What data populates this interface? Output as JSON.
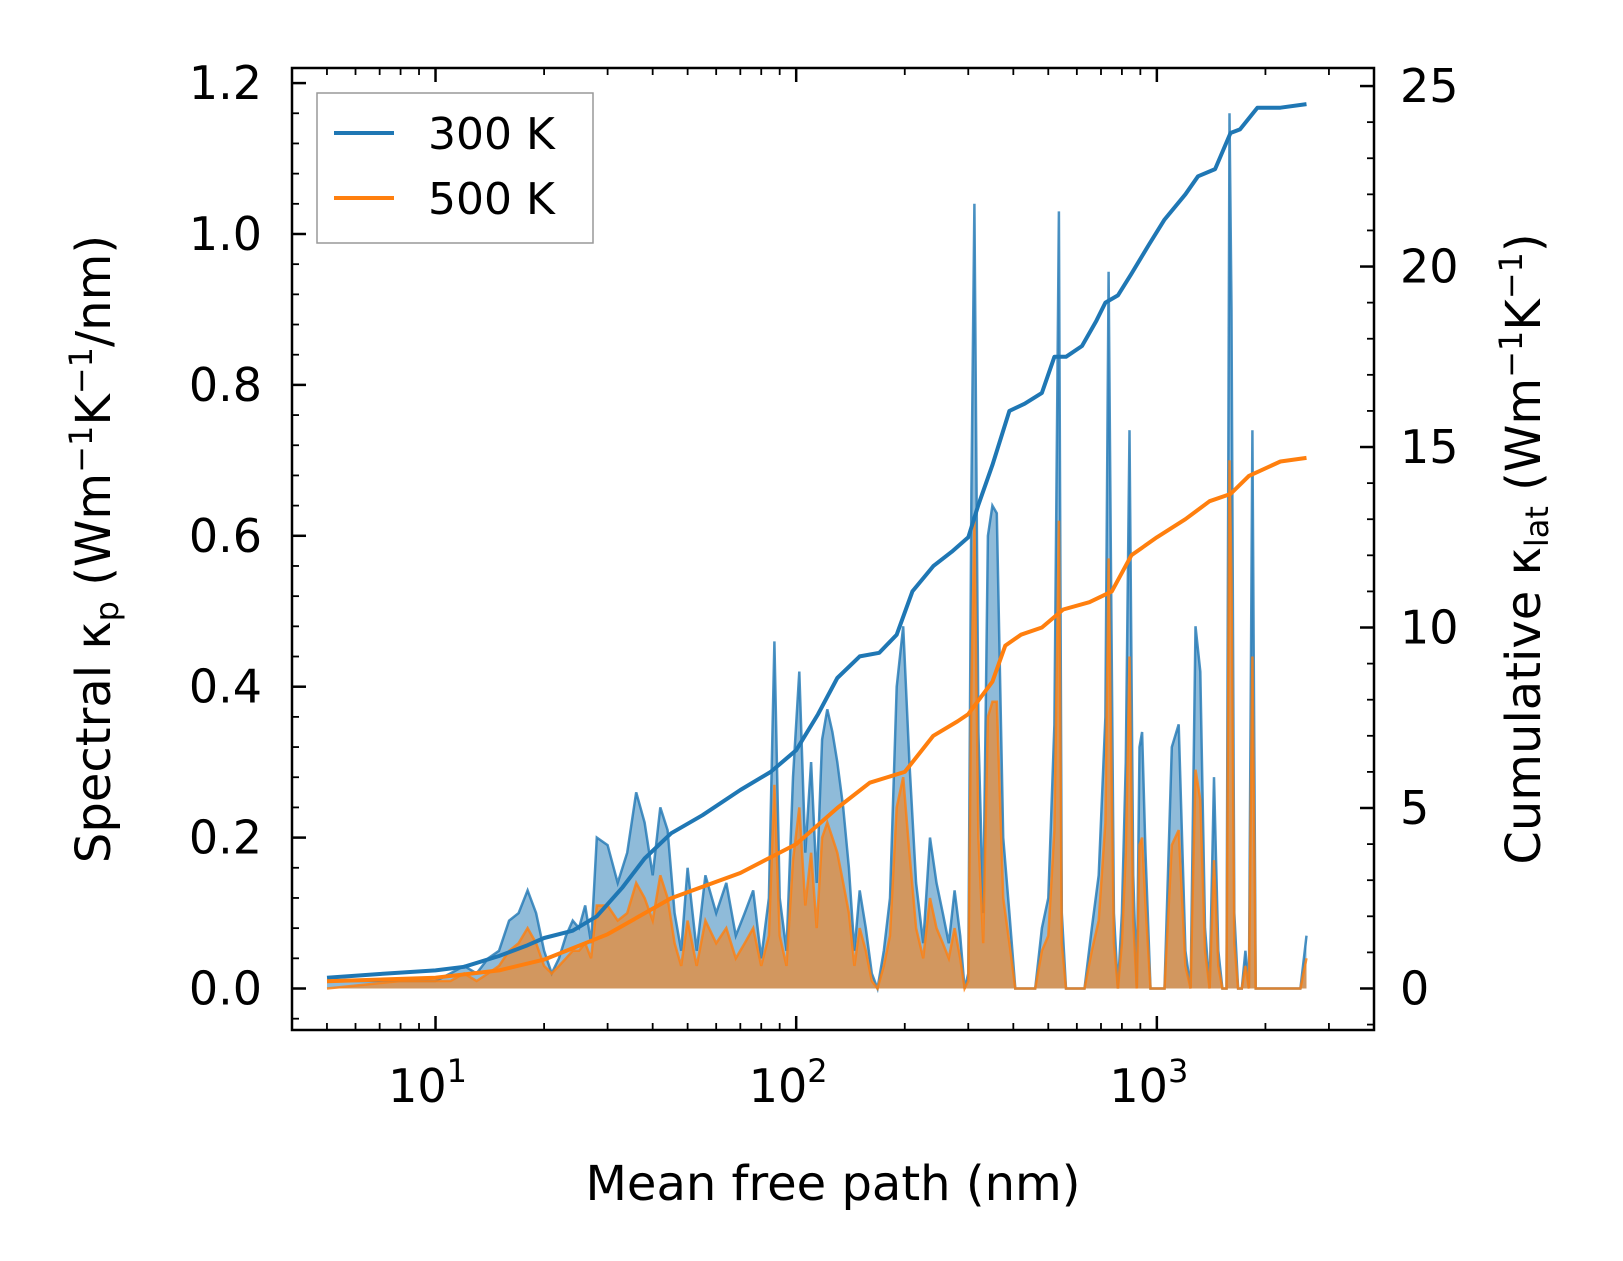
{
  "chart_data": {
    "type": "line",
    "xlabel": "Mean free path (nm)",
    "ylabel": "Spectral κ_p (Wm⁻¹K⁻¹/nm)",
    "ylabel_right": "Cumulative κ_lat (Wm⁻¹K⁻¹)",
    "x_scale": "log",
    "xlim": [
      4,
      4000
    ],
    "ylim": [
      -0.055,
      1.22
    ],
    "ylim_right": [
      -1.15,
      25.5
    ],
    "x_ticks": [
      {
        "value": 10,
        "base": "10",
        "exp": "1"
      },
      {
        "value": 100,
        "base": "10",
        "exp": "2"
      },
      {
        "value": 1000,
        "base": "10",
        "exp": "3"
      }
    ],
    "y_ticks": [
      "0.0",
      "0.2",
      "0.4",
      "0.6",
      "0.8",
      "1.0",
      "1.2"
    ],
    "y_ticks_right": [
      "0",
      "5",
      "10",
      "15",
      "20",
      "25"
    ],
    "legend": {
      "position": "upper-left",
      "entries": [
        {
          "label": "300 K",
          "color": "#1f77b4"
        },
        {
          "label": "500 K",
          "color": "#ff7f0e"
        }
      ]
    },
    "series": [
      {
        "name": "300 K",
        "kind": "cumulative",
        "axis": "right",
        "color": "#1f77b4",
        "x": [
          5,
          7,
          10,
          12,
          15,
          18,
          20,
          24,
          28,
          33,
          38,
          45,
          55,
          70,
          85,
          100,
          115,
          130,
          150,
          170,
          190,
          210,
          240,
          270,
          300,
          320,
          350,
          390,
          430,
          480,
          520,
          560,
          620,
          680,
          720,
          780,
          850,
          950,
          1050,
          1200,
          1300,
          1450,
          1600,
          1700,
          1900,
          2200,
          2600
        ],
        "values": [
          0.3,
          0.4,
          0.5,
          0.6,
          0.9,
          1.2,
          1.4,
          1.6,
          2.0,
          2.8,
          3.6,
          4.3,
          4.8,
          5.5,
          6.0,
          6.6,
          7.6,
          8.6,
          9.2,
          9.3,
          9.8,
          11.0,
          11.7,
          12.1,
          12.5,
          13.4,
          14.5,
          16.0,
          16.2,
          16.5,
          17.5,
          17.5,
          17.8,
          18.5,
          19.0,
          19.2,
          19.8,
          20.6,
          21.3,
          22.0,
          22.5,
          22.7,
          23.7,
          23.8,
          24.4,
          24.4,
          24.5
        ]
      },
      {
        "name": "500 K",
        "kind": "cumulative",
        "axis": "right",
        "color": "#ff7f0e",
        "x": [
          5,
          10,
          15,
          20,
          30,
          45,
          70,
          100,
          130,
          160,
          200,
          240,
          280,
          300,
          350,
          380,
          420,
          480,
          550,
          650,
          750,
          850,
          1000,
          1200,
          1400,
          1600,
          1800,
          2200,
          2600
        ],
        "values": [
          0.2,
          0.3,
          0.5,
          0.8,
          1.5,
          2.5,
          3.2,
          4.0,
          5.0,
          5.7,
          6.0,
          7.0,
          7.4,
          7.6,
          8.5,
          9.5,
          9.8,
          10.0,
          10.5,
          10.7,
          11.0,
          12.0,
          12.5,
          13.0,
          13.5,
          13.7,
          14.2,
          14.6,
          14.7
        ]
      },
      {
        "name": "300 K spectral",
        "kind": "spectral",
        "axis": "left",
        "color": "#1f77b4",
        "x": [
          5,
          8,
          10,
          11,
          12,
          13,
          14,
          15,
          16,
          17,
          18,
          19,
          20,
          21,
          22,
          23,
          24,
          25,
          26,
          27,
          28,
          30,
          32,
          34,
          36,
          38,
          40,
          42,
          44,
          46,
          48,
          50,
          53,
          56,
          60,
          64,
          68,
          72,
          76,
          80,
          84,
          87,
          90,
          94,
          98,
          102,
          106,
          110,
          114,
          118,
          122,
          126,
          130,
          135,
          140,
          145,
          150,
          156,
          162,
          168,
          175,
          182,
          190,
          198,
          206,
          215,
          225,
          235,
          245,
          255,
          265,
          275,
          285,
          293,
          300,
          306,
          312,
          320,
          330,
          340,
          350,
          360,
          375,
          390,
          405,
          420,
          440,
          460,
          480,
          500,
          520,
          535,
          545,
          560,
          580,
          600,
          630,
          660,
          690,
          720,
          735,
          745,
          760,
          780,
          800,
          820,
          840,
          860,
          880,
          895,
          910,
          930,
          960,
          1000,
          1050,
          1100,
          1150,
          1200,
          1240,
          1280,
          1320,
          1360,
          1400,
          1440,
          1480,
          1520,
          1560,
          1590,
          1610,
          1640,
          1680,
          1720,
          1760,
          1800,
          1840,
          1880,
          1920,
          1960,
          2000,
          2100,
          2200,
          2300,
          2400,
          2500,
          2600
        ],
        "values": [
          0.01,
          0.01,
          0.01,
          0.02,
          0.03,
          0.02,
          0.04,
          0.05,
          0.09,
          0.1,
          0.13,
          0.1,
          0.05,
          0.02,
          0.04,
          0.07,
          0.09,
          0.08,
          0.11,
          0.06,
          0.2,
          0.19,
          0.14,
          0.18,
          0.26,
          0.22,
          0.15,
          0.24,
          0.21,
          0.1,
          0.05,
          0.16,
          0.05,
          0.15,
          0.1,
          0.14,
          0.07,
          0.1,
          0.13,
          0.04,
          0.12,
          0.46,
          0.12,
          0.05,
          0.28,
          0.42,
          0.18,
          0.3,
          0.14,
          0.33,
          0.37,
          0.34,
          0.3,
          0.24,
          0.16,
          0.05,
          0.13,
          0.08,
          0.02,
          0.0,
          0.05,
          0.12,
          0.4,
          0.48,
          0.3,
          0.14,
          0.06,
          0.2,
          0.14,
          0.1,
          0.06,
          0.13,
          0.07,
          0.0,
          0.02,
          0.66,
          1.04,
          0.34,
          0.1,
          0.6,
          0.64,
          0.63,
          0.2,
          0.1,
          0.0,
          0.0,
          0.0,
          0.0,
          0.08,
          0.12,
          0.35,
          1.03,
          0.1,
          0.0,
          0.0,
          0.0,
          0.0,
          0.08,
          0.15,
          0.36,
          0.95,
          0.6,
          0.1,
          0.0,
          0.1,
          0.3,
          0.74,
          0.15,
          0.0,
          0.32,
          0.34,
          0.18,
          0.0,
          0.0,
          0.0,
          0.32,
          0.35,
          0.05,
          0.0,
          0.48,
          0.42,
          0.08,
          0.0,
          0.28,
          0.05,
          0.0,
          0.0,
          1.16,
          0.9,
          0.1,
          0.0,
          0.0,
          0.05,
          0.0,
          0.74,
          0.0,
          0.0,
          0.0,
          0.0,
          0.0,
          0.0,
          0.0,
          0.0,
          0.0,
          0.07
        ]
      },
      {
        "name": "500 K spectral",
        "kind": "spectral",
        "axis": "left",
        "color": "#ff7f0e",
        "x": [
          5,
          8,
          10,
          11,
          12,
          13,
          14,
          15,
          16,
          17,
          18,
          19,
          20,
          21,
          22,
          23,
          24,
          25,
          26,
          27,
          28,
          30,
          32,
          34,
          36,
          38,
          40,
          42,
          44,
          46,
          48,
          50,
          53,
          56,
          60,
          64,
          68,
          72,
          76,
          80,
          84,
          87,
          90,
          94,
          98,
          102,
          106,
          110,
          114,
          118,
          122,
          126,
          130,
          135,
          140,
          145,
          150,
          156,
          162,
          168,
          175,
          182,
          190,
          198,
          206,
          215,
          225,
          235,
          245,
          255,
          265,
          275,
          285,
          293,
          300,
          306,
          312,
          320,
          330,
          340,
          350,
          360,
          375,
          390,
          405,
          420,
          440,
          460,
          480,
          500,
          520,
          535,
          545,
          560,
          580,
          600,
          630,
          660,
          690,
          720,
          735,
          745,
          760,
          780,
          800,
          820,
          840,
          860,
          880,
          895,
          910,
          930,
          960,
          1000,
          1050,
          1100,
          1150,
          1200,
          1240,
          1280,
          1320,
          1360,
          1400,
          1440,
          1480,
          1520,
          1560,
          1590,
          1610,
          1640,
          1680,
          1720,
          1760,
          1800,
          1840,
          1880,
          1920,
          1960,
          2000,
          2100,
          2200,
          2300,
          2400,
          2500,
          2600
        ],
        "values": [
          0.0,
          0.01,
          0.01,
          0.01,
          0.02,
          0.01,
          0.02,
          0.03,
          0.05,
          0.06,
          0.08,
          0.06,
          0.03,
          0.02,
          0.03,
          0.04,
          0.05,
          0.05,
          0.06,
          0.04,
          0.11,
          0.11,
          0.09,
          0.1,
          0.14,
          0.12,
          0.09,
          0.15,
          0.12,
          0.06,
          0.03,
          0.09,
          0.03,
          0.09,
          0.06,
          0.08,
          0.04,
          0.06,
          0.08,
          0.03,
          0.07,
          0.27,
          0.07,
          0.03,
          0.17,
          0.24,
          0.11,
          0.18,
          0.08,
          0.2,
          0.22,
          0.2,
          0.18,
          0.14,
          0.1,
          0.03,
          0.08,
          0.05,
          0.01,
          0.0,
          0.03,
          0.07,
          0.24,
          0.28,
          0.18,
          0.08,
          0.04,
          0.12,
          0.08,
          0.06,
          0.04,
          0.08,
          0.04,
          0.0,
          0.01,
          0.4,
          0.62,
          0.2,
          0.06,
          0.36,
          0.38,
          0.38,
          0.12,
          0.06,
          0.0,
          0.0,
          0.0,
          0.0,
          0.05,
          0.07,
          0.21,
          0.62,
          0.06,
          0.0,
          0.0,
          0.0,
          0.0,
          0.05,
          0.09,
          0.22,
          0.57,
          0.36,
          0.06,
          0.0,
          0.06,
          0.18,
          0.44,
          0.09,
          0.0,
          0.19,
          0.2,
          0.11,
          0.0,
          0.0,
          0.0,
          0.19,
          0.21,
          0.03,
          0.0,
          0.29,
          0.25,
          0.05,
          0.0,
          0.17,
          0.03,
          0.0,
          0.0,
          0.7,
          0.54,
          0.06,
          0.0,
          0.0,
          0.03,
          0.0,
          0.44,
          0.0,
          0.0,
          0.0,
          0.0,
          0.0,
          0.0,
          0.0,
          0.0,
          0.0,
          0.04
        ]
      }
    ]
  }
}
